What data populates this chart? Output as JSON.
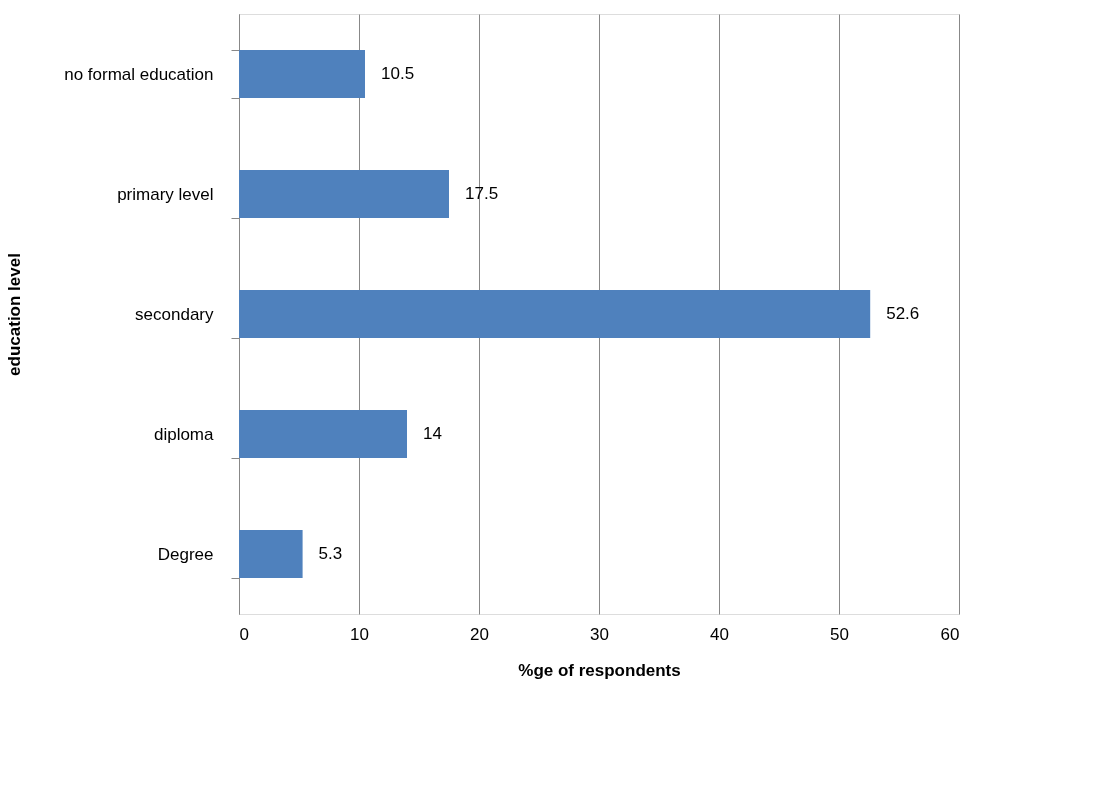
{
  "chart_data": {
    "type": "bar",
    "orientation": "horizontal",
    "xlabel": "%ge of respondents",
    "ylabel": "education level",
    "categories": [
      "no formal education",
      "primary level",
      "secondary",
      "diploma",
      "Degree"
    ],
    "values": [
      10.5,
      17.5,
      52.6,
      14,
      5.3
    ],
    "color": "#4f81bd",
    "xlim": [
      0,
      60
    ],
    "xticks": [
      0,
      10,
      20,
      30,
      40,
      50,
      60
    ],
    "grid": "x",
    "data_labels": true
  }
}
